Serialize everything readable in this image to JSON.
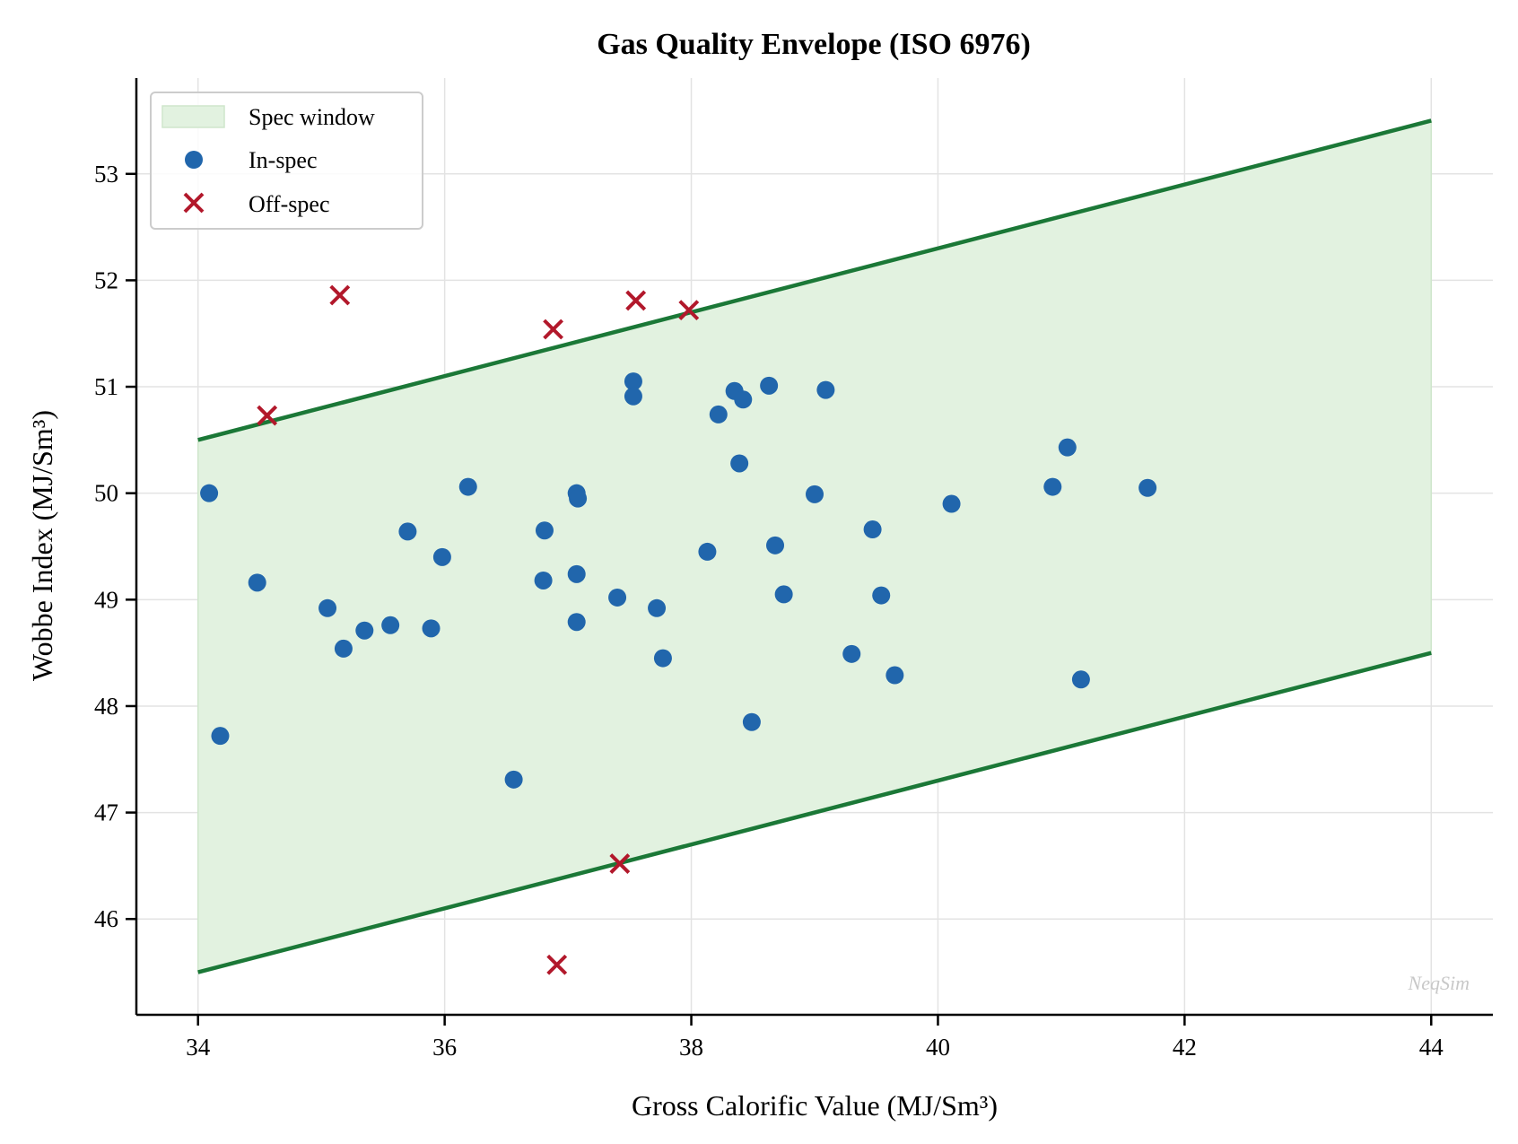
{
  "chart_data": {
    "type": "scatter",
    "title": "Gas Quality Envelope (ISO 6976)",
    "xlabel": "Gross Calorific Value (MJ/Sm³)",
    "ylabel": "Wobbe Index (MJ/Sm³)",
    "xlim": [
      33.5,
      44.5
    ],
    "ylim": [
      45.1,
      53.9
    ],
    "xticks": [
      34,
      36,
      38,
      40,
      42,
      44
    ],
    "yticks": [
      46,
      47,
      48,
      49,
      50,
      51,
      52,
      53
    ],
    "grid": true,
    "legend_position": "top-left",
    "watermark": "NeqSim",
    "spec_window": {
      "name": "Spec window",
      "x": [
        34,
        44
      ],
      "lower": [
        45.5,
        48.5
      ],
      "upper": [
        50.5,
        53.5
      ],
      "line_color": "#1b7837",
      "fill_color": "#e2f2e0"
    },
    "series": [
      {
        "name": "In-spec",
        "marker": "circle",
        "color": "#2166ac",
        "points": [
          [
            34.09,
            50.0
          ],
          [
            34.18,
            47.72
          ],
          [
            34.48,
            49.16
          ],
          [
            35.05,
            48.92
          ],
          [
            35.18,
            48.54
          ],
          [
            35.35,
            48.71
          ],
          [
            35.56,
            48.76
          ],
          [
            35.7,
            49.64
          ],
          [
            35.89,
            48.73
          ],
          [
            35.98,
            49.4
          ],
          [
            36.19,
            50.06
          ],
          [
            36.56,
            47.31
          ],
          [
            36.81,
            49.65
          ],
          [
            36.8,
            49.18
          ],
          [
            37.07,
            50.0
          ],
          [
            37.08,
            49.95
          ],
          [
            37.07,
            49.24
          ],
          [
            37.07,
            48.79
          ],
          [
            37.4,
            49.02
          ],
          [
            37.53,
            51.05
          ],
          [
            37.53,
            50.91
          ],
          [
            37.72,
            48.92
          ],
          [
            37.77,
            48.45
          ],
          [
            38.13,
            49.45
          ],
          [
            38.22,
            50.74
          ],
          [
            38.35,
            50.96
          ],
          [
            38.39,
            50.28
          ],
          [
            38.42,
            50.88
          ],
          [
            38.49,
            47.85
          ],
          [
            38.63,
            51.01
          ],
          [
            38.68,
            49.51
          ],
          [
            38.75,
            49.05
          ],
          [
            39.0,
            49.99
          ],
          [
            39.09,
            50.97
          ],
          [
            39.3,
            48.49
          ],
          [
            39.47,
            49.66
          ],
          [
            39.54,
            49.04
          ],
          [
            39.65,
            48.29
          ],
          [
            40.11,
            49.9
          ],
          [
            40.93,
            50.06
          ],
          [
            41.05,
            50.43
          ],
          [
            41.16,
            48.25
          ],
          [
            41.7,
            50.05
          ]
        ]
      },
      {
        "name": "Off-spec",
        "marker": "x",
        "color": "#b2182b",
        "points": [
          [
            34.56,
            50.73
          ],
          [
            35.15,
            51.86
          ],
          [
            36.88,
            51.54
          ],
          [
            37.55,
            51.81
          ],
          [
            37.98,
            51.72
          ],
          [
            37.42,
            46.52
          ],
          [
            36.91,
            45.57
          ]
        ]
      }
    ]
  }
}
